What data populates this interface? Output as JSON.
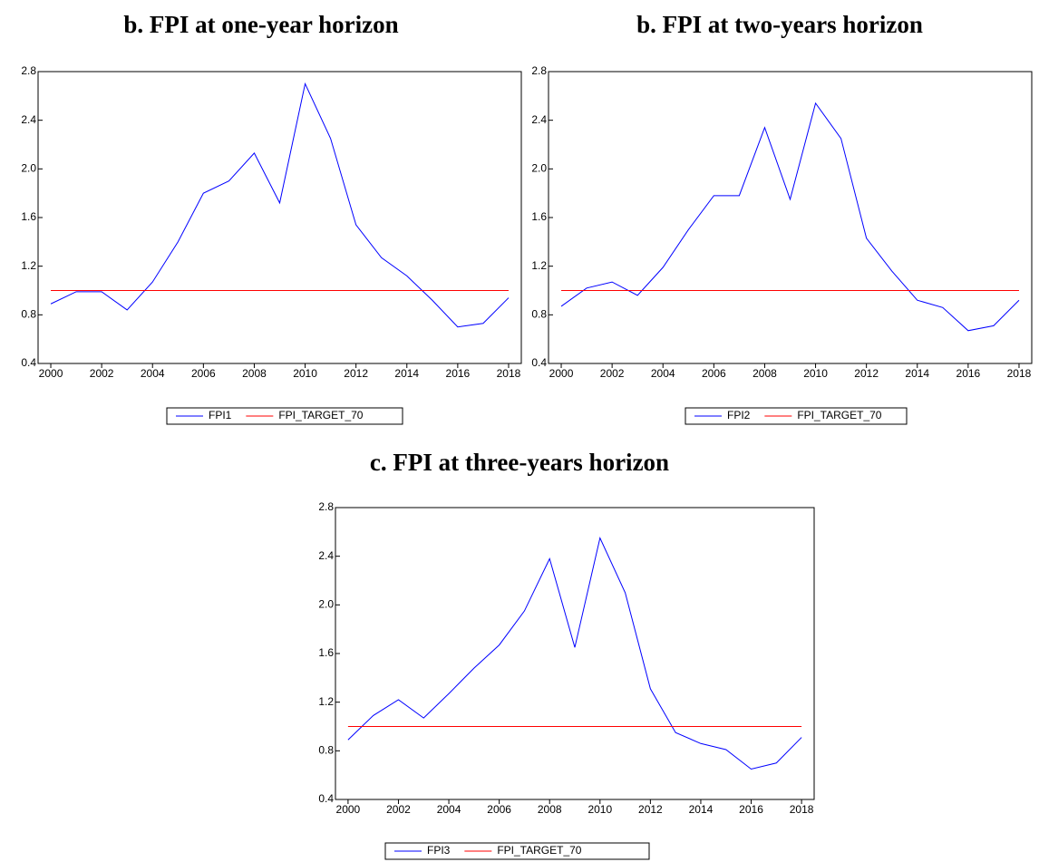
{
  "chart_data": [
    {
      "type": "line",
      "title": "b. FPI at one-year horizon",
      "x": [
        2000,
        2001,
        2002,
        2003,
        2004,
        2005,
        2006,
        2007,
        2008,
        2009,
        2010,
        2011,
        2012,
        2013,
        2014,
        2015,
        2016,
        2017,
        2018
      ],
      "xlim": [
        1999.5,
        2018.5
      ],
      "xticks": [
        2000,
        2002,
        2004,
        2006,
        2008,
        2010,
        2012,
        2014,
        2016,
        2018
      ],
      "ylim": [
        0.4,
        2.8
      ],
      "yticks": [
        0.4,
        0.8,
        1.2,
        1.6,
        {
          "value": 2,
          "label": "2.0"
        },
        2.4,
        2.8
      ],
      "series": [
        {
          "name": "FPI1",
          "color": "#0000ff",
          "values": [
            0.89,
            0.99,
            0.99,
            0.84,
            1.07,
            1.4,
            1.8,
            1.9,
            2.13,
            1.72,
            2.7,
            2.25,
            1.54,
            1.27,
            1.12,
            0.92,
            0.7,
            0.73,
            0.94
          ]
        },
        {
          "name": "FPI_TARGET_70",
          "color": "#ff0000",
          "values": [
            1,
            1,
            1,
            1,
            1,
            1,
            1,
            1,
            1,
            1,
            1,
            1,
            1,
            1,
            1,
            1,
            1,
            1,
            1
          ]
        }
      ]
    },
    {
      "type": "line",
      "title": "b. FPI at two-years horizon",
      "x": [
        2000,
        2001,
        2002,
        2003,
        2004,
        2005,
        2006,
        2007,
        2008,
        2009,
        2010,
        2011,
        2012,
        2013,
        2014,
        2015,
        2016,
        2017,
        2018
      ],
      "xlim": [
        1999.5,
        2018.5
      ],
      "xticks": [
        2000,
        2002,
        2004,
        2006,
        2008,
        2010,
        2012,
        2014,
        2016,
        2018
      ],
      "ylim": [
        0.4,
        2.8
      ],
      "yticks": [
        0.4,
        0.8,
        1.2,
        1.6,
        {
          "value": 2,
          "label": "2.0"
        },
        2.4,
        2.8
      ],
      "series": [
        {
          "name": "FPI2",
          "color": "#0000ff",
          "values": [
            0.87,
            1.02,
            1.07,
            0.96,
            1.19,
            1.5,
            1.78,
            1.78,
            2.34,
            1.75,
            2.54,
            2.25,
            1.43,
            1.16,
            0.92,
            0.86,
            0.67,
            0.71,
            0.92
          ]
        },
        {
          "name": "FPI_TARGET_70",
          "color": "#ff0000",
          "values": [
            1,
            1,
            1,
            1,
            1,
            1,
            1,
            1,
            1,
            1,
            1,
            1,
            1,
            1,
            1,
            1,
            1,
            1,
            1
          ]
        }
      ]
    },
    {
      "type": "line",
      "title": "c. FPI at three-years horizon",
      "x": [
        2000,
        2001,
        2002,
        2003,
        2004,
        2005,
        2006,
        2007,
        2008,
        2009,
        2010,
        2011,
        2012,
        2013,
        2014,
        2015,
        2016,
        2017,
        2018
      ],
      "xlim": [
        1999.5,
        2018.5
      ],
      "xticks": [
        2000,
        2002,
        2004,
        2006,
        2008,
        2010,
        2012,
        2014,
        2016,
        2018
      ],
      "ylim": [
        0.4,
        2.8
      ],
      "yticks": [
        0.4,
        0.8,
        1.2,
        1.6,
        {
          "value": 2,
          "label": "2.0"
        },
        2.4,
        2.8
      ],
      "series": [
        {
          "name": "FPI3",
          "color": "#0000ff",
          "values": [
            0.89,
            1.09,
            1.22,
            1.07,
            1.27,
            1.48,
            1.67,
            1.95,
            2.38,
            1.65,
            2.55,
            2.1,
            1.31,
            0.95,
            0.86,
            0.81,
            0.65,
            0.7,
            0.91
          ]
        },
        {
          "name": "FPI_TARGET_70",
          "color": "#ff0000",
          "values": [
            1,
            1,
            1,
            1,
            1,
            1,
            1,
            1,
            1,
            1,
            1,
            1,
            1,
            1,
            1,
            1,
            1,
            1,
            1
          ]
        }
      ]
    }
  ]
}
